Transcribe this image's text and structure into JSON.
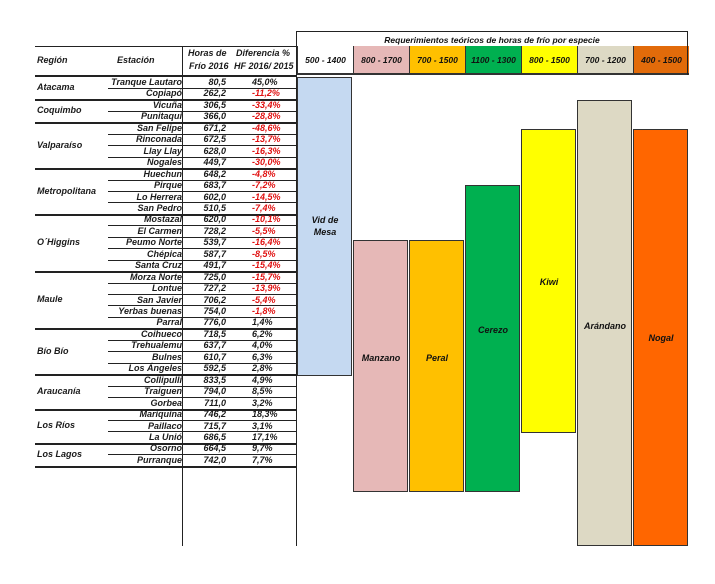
{
  "table": {
    "headers": {
      "region": "Región",
      "station": "Estación",
      "hours_line1": "Horas de",
      "hours_line2": "Frío 2016",
      "diff_line1": "Diferencia %",
      "diff_line2": "HF 2016/ 2015"
    },
    "groups": [
      {
        "region": "Atacama",
        "rows": [
          {
            "station": "Tranque Lautaro",
            "hours": "80,5",
            "diff": "45,0%"
          },
          {
            "station": "Copiapó",
            "hours": "262,2",
            "diff": "-11,2%"
          }
        ]
      },
      {
        "region": "Coquimbo",
        "rows": [
          {
            "station": "Vicuña",
            "hours": "306,5",
            "diff": "-33,4%"
          },
          {
            "station": "Punitaqui",
            "hours": "366,0",
            "diff": "-28,8%"
          }
        ]
      },
      {
        "region": "Valparaíso",
        "rows": [
          {
            "station": "San Felipe",
            "hours": "671,2",
            "diff": "-48,6%"
          },
          {
            "station": "Rinconada",
            "hours": "672,5",
            "diff": "-13,7%"
          },
          {
            "station": "Llay Llay",
            "hours": "628,0",
            "diff": "-16,3%"
          },
          {
            "station": "Nogales",
            "hours": "449,7",
            "diff": "-30,0%"
          }
        ]
      },
      {
        "region": "Metropolitana",
        "rows": [
          {
            "station": "Huechun",
            "hours": "648,2",
            "diff": "-4,8%"
          },
          {
            "station": "Pirque",
            "hours": "683,7",
            "diff": "-7,2%"
          },
          {
            "station": "Lo Herrera",
            "hours": "602,0",
            "diff": "-14,5%"
          },
          {
            "station": "San Pedro",
            "hours": "510,5",
            "diff": "-7,4%"
          }
        ]
      },
      {
        "region": "O´Higgins",
        "rows": [
          {
            "station": "Mostazal",
            "hours": "620,0",
            "diff": "-10,1%"
          },
          {
            "station": "El Carmen",
            "hours": "728,2",
            "diff": "-5,5%"
          },
          {
            "station": "Peumo Norte",
            "hours": "539,7",
            "diff": "-16,4%"
          },
          {
            "station": "Chépica",
            "hours": "587,7",
            "diff": "-8,5%"
          },
          {
            "station": "Santa Cruz",
            "hours": "491,7",
            "diff": "-15,4%"
          }
        ]
      },
      {
        "region": "Maule",
        "rows": [
          {
            "station": "Morza Norte",
            "hours": "725,0",
            "diff": "-15,7%"
          },
          {
            "station": "Lontue",
            "hours": "727,2",
            "diff": "-13,9%"
          },
          {
            "station": "San Javier",
            "hours": "706,2",
            "diff": "-5,4%"
          },
          {
            "station": "Yerbas buenas",
            "hours": "754,0",
            "diff": "-1,8%"
          },
          {
            "station": "Parral",
            "hours": "776,0",
            "diff": "1,4%"
          }
        ]
      },
      {
        "region": "Bío Bío",
        "rows": [
          {
            "station": "Coihueco",
            "hours": "718,5",
            "diff": "6,2%"
          },
          {
            "station": "Trehualemu",
            "hours": "637,7",
            "diff": "4,0%"
          },
          {
            "station": "Bulnes",
            "hours": "610,7",
            "diff": "6,3%"
          },
          {
            "station": "Los Ángeles",
            "hours": "592,5",
            "diff": "2,8%"
          }
        ]
      },
      {
        "region": "Araucanía",
        "rows": [
          {
            "station": "Collipulli",
            "hours": "833,5",
            "diff": "4,9%"
          },
          {
            "station": "Traiguen",
            "hours": "794,0",
            "diff": "8,5%"
          },
          {
            "station": "Gorbea",
            "hours": "711,0",
            "diff": "3,2%"
          }
        ]
      },
      {
        "region": "Los Ríos",
        "rows": [
          {
            "station": "Mariquina",
            "hours": "746,2",
            "diff": "18,3%"
          },
          {
            "station": "Paillaco",
            "hours": "715,7",
            "diff": "3,1%"
          },
          {
            "station": "La Unió",
            "hours": "686,5",
            "diff": "17,1%"
          }
        ]
      },
      {
        "region": "Los Lagos",
        "rows": [
          {
            "station": "Osorno",
            "hours": "664,5",
            "diff": "9,7%"
          },
          {
            "station": "Purranque",
            "hours": "742,0",
            "diff": "7,7%"
          }
        ]
      }
    ]
  },
  "requirements": {
    "title": "Requerimientos teóricos de horas de frío por especie",
    "species": [
      {
        "range": "500 - 1400",
        "name": "Vid de Mesa",
        "color": "#c5d9f1",
        "header_color": "#ffffff"
      },
      {
        "range": "800 - 1700",
        "name": "Manzano",
        "color": "#e6b8b7",
        "header_color": "#e6b8b7"
      },
      {
        "range": "700 - 1500",
        "name": "Peral",
        "color": "#ffc000",
        "header_color": "#ffc000"
      },
      {
        "range": "1100 - 1300",
        "name": "Cerezo",
        "color": "#00b050",
        "header_color": "#00b050"
      },
      {
        "range": "800 - 1500",
        "name": "Kiwi",
        "color": "#ffff00",
        "header_color": "#ffff00"
      },
      {
        "range": "700 - 1200",
        "name": "Arándano",
        "color": "#ddd9c4",
        "header_color": "#ddd9c4"
      },
      {
        "range": "400 - 1500",
        "name": "Nogal",
        "color": "#ff6600",
        "header_color": "#e26b0a"
      }
    ]
  }
}
